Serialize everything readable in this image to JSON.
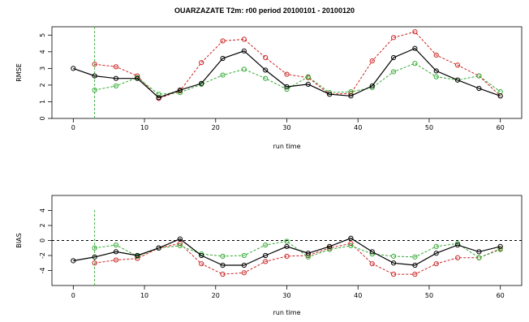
{
  "title": "OUARZAZATE T2m: r00 period 20100101 - 20100120",
  "chart_data": [
    {
      "type": "line",
      "xlabel": "run time",
      "ylabel": "RMSE",
      "xlim": [
        -3,
        63
      ],
      "ylim": [
        0,
        5.5
      ],
      "x_ticks": [
        0,
        10,
        20,
        30,
        40,
        50,
        60
      ],
      "y_ticks": [
        0,
        1,
        2,
        3,
        4,
        5
      ],
      "series": [
        {
          "color": "#000000",
          "style": "solid",
          "x": [
            0,
            3,
            6,
            9,
            12,
            15,
            18,
            21,
            24,
            27,
            30,
            33,
            36,
            39,
            42,
            45,
            48,
            51,
            54,
            57,
            60
          ],
          "y": [
            3.0,
            2.55,
            2.4,
            2.4,
            1.25,
            1.7,
            2.1,
            3.6,
            4.05,
            2.9,
            1.9,
            2.05,
            1.45,
            1.35,
            1.95,
            3.65,
            4.2,
            2.85,
            2.3,
            1.8,
            1.35
          ]
        },
        {
          "color": "#cc2222",
          "style": "dashed",
          "x": [
            3,
            6,
            9,
            12,
            15,
            18,
            21,
            24,
            27,
            30,
            33,
            36,
            39,
            42,
            45,
            48,
            51,
            54,
            57,
            60
          ],
          "y": [
            3.25,
            3.1,
            2.55,
            1.2,
            1.65,
            3.35,
            4.65,
            4.75,
            3.65,
            2.65,
            2.45,
            1.45,
            1.5,
            3.45,
            4.85,
            5.2,
            3.8,
            3.2,
            2.55,
            1.35
          ]
        },
        {
          "color": "#33aa33",
          "style": "dashed",
          "x": [
            3,
            6,
            9,
            12,
            15,
            18,
            21,
            24,
            27,
            30,
            33,
            36,
            39,
            42,
            45,
            48,
            51,
            54,
            57,
            60
          ],
          "y": [
            1.7,
            1.95,
            2.45,
            1.45,
            1.55,
            2.05,
            2.6,
            2.95,
            2.4,
            1.75,
            2.5,
            1.55,
            1.6,
            1.85,
            2.8,
            3.3,
            2.5,
            2.3,
            2.55,
            1.6
          ]
        }
      ]
    },
    {
      "type": "line",
      "xlabel": "run time",
      "ylabel": "BIAS",
      "xlim": [
        -3,
        63
      ],
      "ylim": [
        -6,
        6
      ],
      "x_ticks": [
        0,
        10,
        20,
        30,
        40,
        50,
        60
      ],
      "y_ticks": [
        -4,
        -2,
        0,
        2,
        4
      ],
      "zero_line": true,
      "series": [
        {
          "color": "#000000",
          "style": "solid",
          "x": [
            0,
            3,
            6,
            9,
            12,
            15,
            18,
            21,
            24,
            27,
            30,
            33,
            36,
            39,
            42,
            45,
            48,
            51,
            54,
            57,
            60
          ],
          "y": [
            -2.7,
            -2.2,
            -1.5,
            -2.0,
            -1.0,
            0.2,
            -2.0,
            -3.3,
            -3.3,
            -2.0,
            -0.8,
            -1.7,
            -0.8,
            0.3,
            -1.5,
            -3.0,
            -3.3,
            -1.7,
            -0.6,
            -1.5,
            -0.8
          ]
        },
        {
          "color": "#cc2222",
          "style": "dashed",
          "x": [
            3,
            6,
            9,
            12,
            15,
            18,
            21,
            24,
            27,
            30,
            33,
            36,
            39,
            42,
            45,
            48,
            51,
            54,
            57,
            60
          ],
          "y": [
            -3.0,
            -2.6,
            -2.4,
            -1.0,
            -0.4,
            -3.1,
            -4.5,
            -4.3,
            -2.8,
            -2.1,
            -2.0,
            -1.0,
            -0.4,
            -3.1,
            -4.5,
            -4.5,
            -3.1,
            -2.3,
            -2.3,
            -1.1
          ]
        },
        {
          "color": "#33aa33",
          "style": "dashed",
          "x": [
            3,
            6,
            9,
            12,
            15,
            18,
            21,
            24,
            27,
            30,
            33,
            36,
            39,
            42,
            45,
            48,
            51,
            54,
            57,
            60
          ],
          "y": [
            -1.0,
            -0.6,
            -2.1,
            -1.0,
            -0.7,
            -1.8,
            -2.1,
            -2.0,
            -0.6,
            -0.1,
            -2.2,
            -1.2,
            -0.7,
            -1.8,
            -2.1,
            -2.2,
            -0.8,
            -0.4,
            -2.3,
            -1.2
          ]
        }
      ]
    }
  ]
}
